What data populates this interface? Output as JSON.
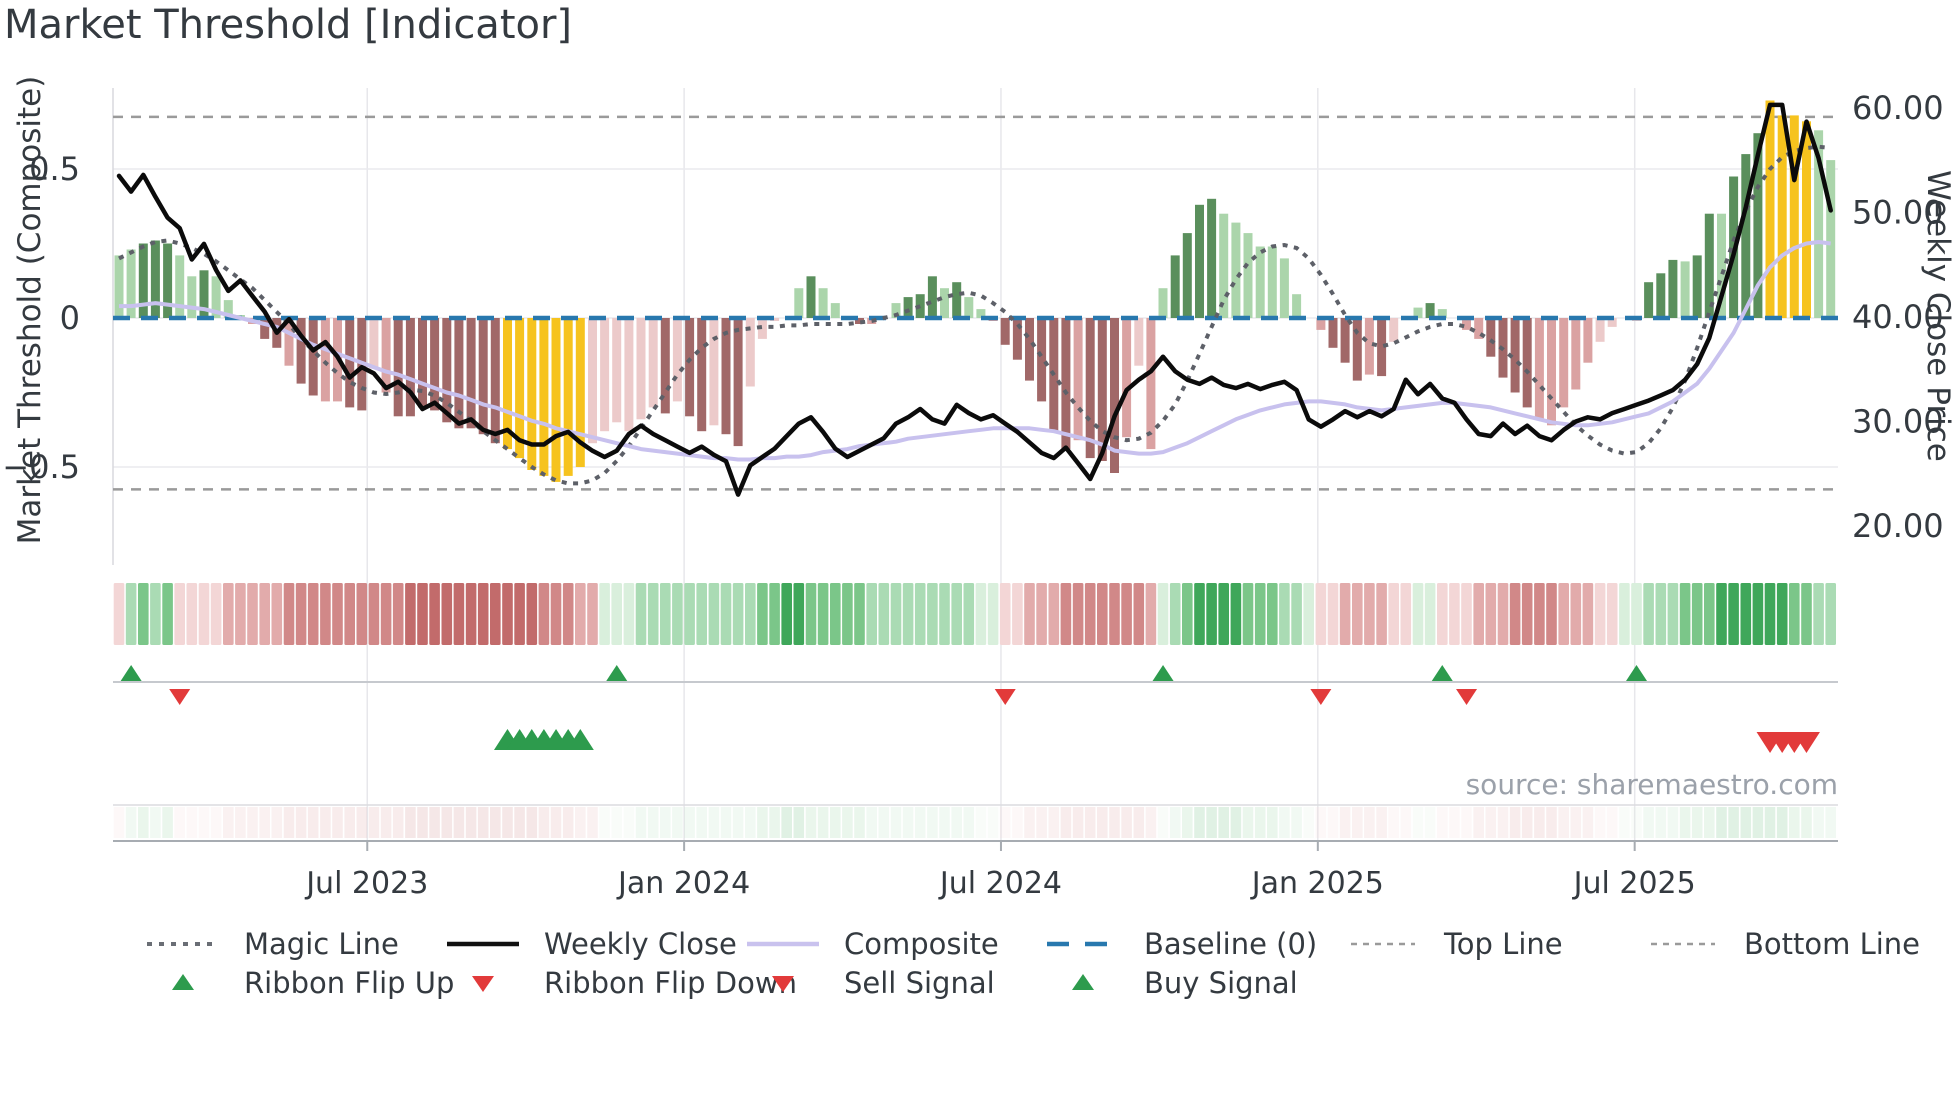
{
  "title": "Market Threshold [Indicator]",
  "source_note": "source: sharemaestro.com",
  "axes": {
    "left_title": "Market Threshold (Composite)",
    "right_title": "Weekly Close Price",
    "left_ticks": [
      {
        "v": 0.5,
        "label": "0.5"
      },
      {
        "v": 0,
        "label": "0"
      },
      {
        "v": -0.5,
        "label": "−0.5"
      }
    ],
    "right_ticks": [
      {
        "v": 60,
        "label": "60.00"
      },
      {
        "v": 50,
        "label": "50.00"
      },
      {
        "v": 40,
        "label": "40.00"
      },
      {
        "v": 30,
        "label": "30.00"
      },
      {
        "v": 20,
        "label": "20.00"
      }
    ],
    "x_ticks": [
      {
        "week": 20.45,
        "label": "Jul 2023"
      },
      {
        "week": 46.55,
        "label": "Jan 2024"
      },
      {
        "week": 72.65,
        "label": "Jul 2024"
      },
      {
        "week": 98.75,
        "label": "Jan 2025"
      },
      {
        "week": 124.85,
        "label": "Jul 2025"
      }
    ]
  },
  "colors": {
    "bar_dark_green": "#5a8f5c",
    "bar_light_green": "#abd5ab",
    "bar_yellow": "#f6c31e",
    "bar_maroon": "#a16868",
    "bar_pink": "#daa2a2",
    "bar_pale_pink": "#eccaca",
    "weekly_close": "#0b0b0b",
    "composite_line": "#c8c1ee",
    "magic_line": "#5d6068",
    "baseline": "#2878ae",
    "top_bottom_line": "#9a9a9a",
    "signal_green": "#2d9b4d",
    "signal_red": "#e23a3a",
    "ribbon_palette": {
      "-4": "#c26b6b",
      "-3": "#d18888",
      "-2": "#e2abab",
      "-1": "#f3d6d6",
      "1": "#d9efdc",
      "2": "#aadbb4",
      "3": "#7bc689",
      "4": "#3fa75a"
    }
  },
  "legend": {
    "row1": [
      {
        "label": "Magic Line",
        "swatch": "dotted",
        "color": "#6a6e75"
      },
      {
        "label": "Weekly Close",
        "swatch": "solid",
        "color": "#111111"
      },
      {
        "label": "Composite",
        "swatch": "solid",
        "color": "#c9c2ee"
      },
      {
        "label": "Baseline (0)",
        "swatch": "long-dash",
        "color": "#2878ae"
      },
      {
        "label": "Top Line",
        "swatch": "small-dash",
        "color": "#9a9a9a"
      },
      {
        "label": "Bottom Line",
        "swatch": "small-dash",
        "color": "#9a9a9a"
      }
    ],
    "row2": [
      {
        "label": "Ribbon Flip Up",
        "swatch": "triangle-up",
        "color": "#2d9b4d"
      },
      {
        "label": "Ribbon Flip Down",
        "swatch": "triangle-down",
        "color": "#e23a3a"
      },
      {
        "label": "Sell Signal",
        "swatch": "triangle-down",
        "color": "#e23a3a"
      },
      {
        "label": "Buy Signal",
        "swatch": "triangle-up",
        "color": "#2d9b4d"
      }
    ]
  },
  "chart_data": {
    "type": "combo",
    "weeks": 142,
    "x_range_note": "weekly data, Feb 2023 - Nov 2025",
    "ylim_left": [
      -0.83,
      0.77
    ],
    "ylim_right": [
      16.5,
      62
    ],
    "baseline": 0,
    "top_line": 0.675,
    "bottom_line": -0.575,
    "composite_bars": [
      0.21,
      0.23,
      0.25,
      0.26,
      0.25,
      0.21,
      0.14,
      0.16,
      0.14,
      0.06,
      0.01,
      -0.02,
      -0.07,
      -0.1,
      -0.16,
      -0.22,
      -0.26,
      -0.28,
      -0.28,
      -0.3,
      -0.31,
      -0.17,
      -0.25,
      -0.33,
      -0.33,
      -0.3,
      -0.31,
      -0.35,
      -0.37,
      -0.37,
      -0.39,
      -0.42,
      -0.44,
      -0.47,
      -0.51,
      -0.53,
      -0.55,
      -0.53,
      -0.5,
      -0.42,
      -0.38,
      -0.35,
      -0.38,
      -0.34,
      -0.3,
      -0.32,
      -0.28,
      -0.33,
      -0.38,
      -0.36,
      -0.39,
      -0.43,
      -0.23,
      -0.07,
      -0.01,
      0,
      0.1,
      0.14,
      0.1,
      0.05,
      0,
      -0.02,
      -0.02,
      0,
      0.05,
      0.07,
      0.08,
      0.14,
      0.1,
      0.12,
      0.07,
      0.03,
      -0.01,
      -0.09,
      -0.14,
      -0.21,
      -0.28,
      -0.38,
      -0.44,
      -0.41,
      -0.47,
      -0.48,
      -0.52,
      -0.4,
      -0.16,
      -0.44,
      0.1,
      0.21,
      0.285,
      0.38,
      0.4,
      0.35,
      0.32,
      0.285,
      0.24,
      0.24,
      0.2,
      0.08,
      0,
      -0.04,
      -0.1,
      -0.15,
      -0.21,
      -0.19,
      -0.195,
      -0.08,
      0,
      0.035,
      0.05,
      0.03,
      0,
      -0.04,
      -0.07,
      -0.13,
      -0.2,
      -0.25,
      -0.3,
      -0.34,
      -0.36,
      -0.3,
      -0.24,
      -0.15,
      -0.08,
      -0.03,
      0,
      -0.01,
      0.12,
      0.15,
      0.195,
      0.19,
      0.21,
      0.35,
      0.35,
      0.475,
      0.55,
      0.62,
      0.73,
      0.68,
      0.68,
      0.66,
      0.63,
      0.53
    ],
    "bar_styles": "ggGGGggGgggrRRrRRrrRRprRRRRRRRRRYYYYYYYppppppRpRRpRRppp.gGgg.Rr.gGGGgGggrRRRRRRrRRRrprgGGGGggggggg.rRRRrRp.gGg.rrRRRRrrrrrpp.pGGGgGGgGGGYYYYgg",
    "bar_style_key": {
      "G": "dark-green",
      "g": "light-green",
      "Y": "yellow-signal",
      "R": "maroon",
      "r": "pink",
      "p": "pale-pink",
      ".": "none"
    },
    "weekly_close": [
      53.5,
      52,
      53.6,
      51.5,
      49.5,
      48.5,
      45.5,
      47,
      44.5,
      42.5,
      43.5,
      42,
      40.5,
      38.5,
      39.8,
      38.2,
      36.8,
      37.6,
      36.2,
      34.2,
      35.2,
      34.6,
      33.2,
      33.8,
      32.8,
      31.2,
      31.8,
      30.8,
      29.8,
      30.2,
      29.2,
      28.8,
      29.2,
      28.2,
      27.8,
      27.8,
      28.6,
      29,
      28,
      27.2,
      26.6,
      27.2,
      28.8,
      29.6,
      28.8,
      28.2,
      27.6,
      27,
      27.6,
      26.8,
      26.2,
      23,
      25.8,
      26.6,
      27.4,
      28.6,
      29.8,
      30.4,
      29,
      27.4,
      26.6,
      27.2,
      27.8,
      28.4,
      29.8,
      30.4,
      31.2,
      30.2,
      29.8,
      31.6,
      30.8,
      30.2,
      30.6,
      29.8,
      29,
      28,
      27,
      26.5,
      27.5,
      26,
      24.5,
      27,
      30.5,
      33,
      34,
      34.8,
      36.2,
      34.8,
      34,
      33.6,
      34.2,
      33.5,
      33.2,
      33.6,
      33.1,
      33.5,
      33.8,
      33,
      30.2,
      29.5,
      30.2,
      31,
      30.4,
      31,
      30.5,
      31.2,
      34,
      32.6,
      33.6,
      32.2,
      31.8,
      30.2,
      28.8,
      28.6,
      29.8,
      28.8,
      29.6,
      28.6,
      28.2,
      29.2,
      30,
      30.4,
      30.2,
      30.8,
      31.2,
      31.6,
      32,
      32.5,
      33,
      34,
      35.5,
      38,
      42,
      46,
      50.5,
      55.5,
      60.3,
      60.3,
      53.1,
      58.7,
      55.2,
      50.2
    ],
    "composite_line": [
      0.04,
      0.04,
      0.045,
      0.05,
      0.045,
      0.04,
      0.035,
      0.03,
      0.02,
      0.01,
      0,
      -0.01,
      -0.02,
      -0.03,
      -0.05,
      -0.07,
      -0.09,
      -0.105,
      -0.12,
      -0.135,
      -0.15,
      -0.165,
      -0.18,
      -0.19,
      -0.205,
      -0.22,
      -0.235,
      -0.25,
      -0.26,
      -0.275,
      -0.29,
      -0.3,
      -0.315,
      -0.33,
      -0.345,
      -0.355,
      -0.37,
      -0.38,
      -0.39,
      -0.4,
      -0.41,
      -0.42,
      -0.43,
      -0.44,
      -0.445,
      -0.45,
      -0.455,
      -0.46,
      -0.465,
      -0.47,
      -0.47,
      -0.475,
      -0.475,
      -0.47,
      -0.47,
      -0.465,
      -0.465,
      -0.46,
      -0.45,
      -0.445,
      -0.44,
      -0.43,
      -0.425,
      -0.42,
      -0.415,
      -0.405,
      -0.4,
      -0.395,
      -0.39,
      -0.385,
      -0.38,
      -0.375,
      -0.37,
      -0.37,
      -0.37,
      -0.37,
      -0.375,
      -0.38,
      -0.39,
      -0.4,
      -0.41,
      -0.425,
      -0.445,
      -0.45,
      -0.455,
      -0.455,
      -0.45,
      -0.435,
      -0.42,
      -0.4,
      -0.38,
      -0.36,
      -0.34,
      -0.325,
      -0.31,
      -0.3,
      -0.29,
      -0.285,
      -0.28,
      -0.28,
      -0.285,
      -0.29,
      -0.3,
      -0.305,
      -0.31,
      -0.305,
      -0.3,
      -0.295,
      -0.29,
      -0.285,
      -0.285,
      -0.29,
      -0.295,
      -0.3,
      -0.31,
      -0.32,
      -0.33,
      -0.34,
      -0.35,
      -0.355,
      -0.36,
      -0.36,
      -0.355,
      -0.35,
      -0.34,
      -0.33,
      -0.32,
      -0.3,
      -0.28,
      -0.25,
      -0.22,
      -0.17,
      -0.11,
      -0.05,
      0.03,
      0.11,
      0.17,
      0.21,
      0.235,
      0.25,
      0.255,
      0.25
    ],
    "magic_line": [
      0.2,
      0.22,
      0.24,
      0.255,
      0.26,
      0.25,
      0.235,
      0.215,
      0.19,
      0.16,
      0.13,
      0.1,
      0.06,
      0.02,
      -0.02,
      -0.07,
      -0.11,
      -0.15,
      -0.185,
      -0.215,
      -0.235,
      -0.25,
      -0.255,
      -0.25,
      -0.24,
      -0.245,
      -0.26,
      -0.285,
      -0.315,
      -0.345,
      -0.38,
      -0.41,
      -0.44,
      -0.47,
      -0.5,
      -0.525,
      -0.545,
      -0.555,
      -0.555,
      -0.545,
      -0.52,
      -0.48,
      -0.43,
      -0.37,
      -0.31,
      -0.25,
      -0.19,
      -0.14,
      -0.1,
      -0.07,
      -0.05,
      -0.04,
      -0.035,
      -0.03,
      -0.03,
      -0.025,
      -0.025,
      -0.02,
      -0.02,
      -0.02,
      -0.02,
      -0.015,
      -0.01,
      0,
      0.01,
      0.025,
      0.04,
      0.055,
      0.07,
      0.08,
      0.085,
      0.075,
      0.05,
      0.02,
      -0.02,
      -0.07,
      -0.13,
      -0.19,
      -0.25,
      -0.3,
      -0.345,
      -0.38,
      -0.4,
      -0.41,
      -0.405,
      -0.385,
      -0.345,
      -0.29,
      -0.21,
      -0.12,
      -0.03,
      0.06,
      0.13,
      0.185,
      0.22,
      0.24,
      0.245,
      0.235,
      0.2,
      0.145,
      0.08,
      0.01,
      -0.05,
      -0.085,
      -0.095,
      -0.085,
      -0.065,
      -0.045,
      -0.03,
      -0.02,
      -0.02,
      -0.03,
      -0.05,
      -0.075,
      -0.105,
      -0.14,
      -0.18,
      -0.225,
      -0.27,
      -0.315,
      -0.36,
      -0.395,
      -0.425,
      -0.445,
      -0.455,
      -0.45,
      -0.42,
      -0.37,
      -0.3,
      -0.21,
      -0.1,
      0.02,
      0.14,
      0.26,
      0.36,
      0.44,
      0.5,
      0.54,
      0.56,
      0.57,
      0.575,
      0.57
    ],
    "ribbon": [
      -1,
      2,
      3,
      2,
      3,
      -1,
      -1,
      -1,
      -1,
      -2,
      -2,
      -2,
      -2,
      -2,
      -3,
      -3,
      -3,
      -3,
      -3,
      -3,
      -3,
      -3,
      -3,
      -3,
      -4,
      -4,
      -4,
      -4,
      -4,
      -4,
      -4,
      -4,
      -4,
      -4,
      -4,
      -3,
      -3,
      -3,
      -2,
      -2,
      1,
      1,
      1,
      2,
      2,
      2,
      2,
      2,
      2,
      2,
      2,
      2,
      2,
      3,
      3,
      4,
      4,
      3,
      3,
      3,
      3,
      3,
      2,
      2,
      2,
      2,
      2,
      2,
      2,
      2,
      2,
      1,
      1,
      -1,
      -1,
      -2,
      -2,
      -2,
      -3,
      -3,
      -3,
      -3,
      -3,
      -3,
      -3,
      -2,
      1,
      2,
      3,
      4,
      4,
      4,
      4,
      3,
      3,
      3,
      2,
      2,
      1,
      -1,
      -1,
      -2,
      -2,
      -2,
      -2,
      -1,
      -1,
      1,
      1,
      -1,
      -1,
      -1,
      -2,
      -2,
      -2,
      -3,
      -3,
      -3,
      -3,
      -2,
      -2,
      -2,
      -1,
      -1,
      1,
      1,
      2,
      2,
      2,
      3,
      3,
      3,
      4,
      4,
      4,
      4,
      4,
      4,
      3,
      3,
      2,
      2
    ],
    "signals": {
      "ribbon_flip_up_weeks": [
        1,
        41,
        86,
        109,
        125
      ],
      "ribbon_flip_down_weeks": [
        5,
        73,
        99,
        111
      ],
      "buy_signal_weeks": [
        32,
        33,
        34,
        35,
        36,
        37,
        38
      ],
      "sell_signal_weeks": [
        136,
        137,
        138,
        139
      ]
    }
  }
}
